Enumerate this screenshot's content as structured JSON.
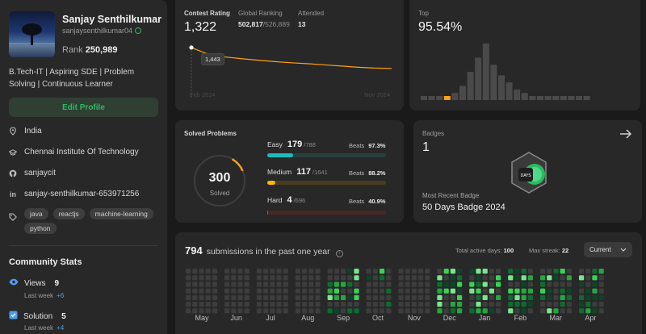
{
  "profile": {
    "name": "Sanjay Senthilkumar",
    "username": "sanjaysenthilkumar04",
    "rank_label": "Rank",
    "rank_value": "250,989",
    "bio": "B.Tech-IT | Aspiring SDE | Problem Solving | Continuous Learner",
    "edit_label": "Edit Profile",
    "location": "India",
    "school": "Chennai Institute Of Technology",
    "github": "sanjaycit",
    "linkedin": "sanjay-senthilkumar-653971256",
    "skills": [
      "java",
      "reactjs",
      "machine-learning",
      "python"
    ]
  },
  "community": {
    "title": "Community Stats",
    "views_label": "Views",
    "views_value": "9",
    "views_sub": "Last week",
    "views_delta": "+6",
    "solution_label": "Solution",
    "solution_value": "5",
    "solution_sub": "Last week",
    "solution_delta": "+4"
  },
  "contest": {
    "rating_label": "Contest Rating",
    "rating_value": "1,322",
    "global_label": "Global Ranking",
    "global_value": "502,817",
    "global_total": "/526,889",
    "attended_label": "Attended",
    "attended_value": "13",
    "tooltip": "1,443",
    "x_start": "Feb 2024",
    "x_end": "Nov 2024",
    "top_label": "Top",
    "top_value": "95.54%"
  },
  "solved": {
    "title": "Solved Problems",
    "total": "300",
    "total_label": "Solved",
    "easy_label": "Easy",
    "easy_value": "179",
    "easy_total": "/788",
    "easy_beats": "97.3%",
    "medium_label": "Medium",
    "medium_value": "117",
    "medium_total": "/1641",
    "medium_beats": "88.2%",
    "hard_label": "Hard",
    "hard_value": "4",
    "hard_total": "/696",
    "hard_beats": "40.9%",
    "beats_label": "Beats"
  },
  "badges": {
    "title": "Badges",
    "count": "1",
    "recent_label": "Most Recent Badge",
    "recent_name": "50 Days Badge 2024",
    "badge_text": "DAYS"
  },
  "submissions": {
    "count": "794",
    "text": "submissions in the past one year",
    "active_label": "Total active days:",
    "active_value": "100",
    "streak_label": "Max streak:",
    "streak_value": "22",
    "dropdown": "Current",
    "months": [
      "May",
      "Jun",
      "Jul",
      "Aug",
      "Sep",
      "Oct",
      "Nov",
      "Dec",
      "Jan",
      "Feb",
      "Mar",
      "Apr"
    ]
  },
  "chart_data": {
    "type": "line",
    "title": "Contest Rating",
    "x": [
      1,
      2,
      3,
      4,
      5,
      6,
      7,
      8,
      9,
      10,
      11,
      12,
      13
    ],
    "values": [
      1500,
      1443,
      1420,
      1405,
      1392,
      1380,
      1370,
      1362,
      1352,
      1342,
      1332,
      1325,
      1322
    ],
    "xlabel": "",
    "ylabel": "",
    "x_ticks": [
      "Feb 2024",
      "Nov 2024"
    ],
    "ylim": [
      1300,
      1520
    ],
    "histogram": {
      "type": "bar",
      "title": "Top",
      "values": [
        1,
        1,
        1,
        1,
        2,
        4,
        8,
        12,
        16,
        10,
        7,
        5,
        3,
        2,
        1,
        1,
        1,
        1,
        1,
        1,
        1,
        1
      ],
      "highlight_index": 3
    }
  },
  "colors": {
    "accent_green": "#2cbb5d",
    "easy": "#1cbaba",
    "medium": "#ffb700",
    "hard": "#f63737",
    "orange": "#ffa116",
    "link_blue": "#4f9df0"
  }
}
